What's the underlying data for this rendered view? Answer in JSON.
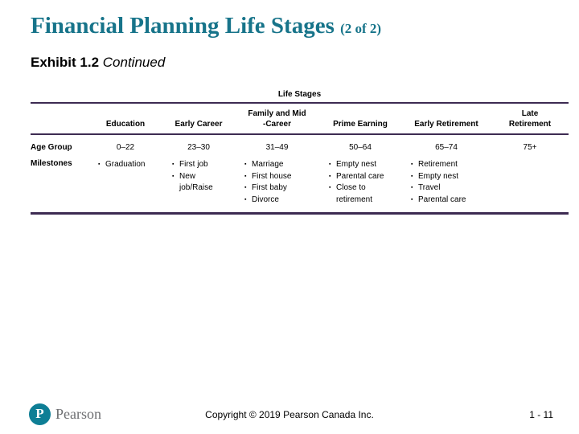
{
  "slide": {
    "title": "Financial Planning Life Stages",
    "title_suffix": "(2 of 2)",
    "subtitle_bold": "Exhibit 1.2",
    "subtitle_italic": "Continued"
  },
  "table": {
    "caption": "Life Stages",
    "columns": [
      "Education",
      "Early Career",
      "Family and Mid\n-Career",
      "Prime Earning",
      "Early Retirement",
      "Late\nRetirement"
    ],
    "age_row": {
      "label": "Age Group",
      "values": [
        "0–22",
        "23–30",
        "31–49",
        "50–64",
        "65–74",
        "75+"
      ]
    },
    "milestones_row": {
      "label": "Milestones",
      "bullet_icon": "▪",
      "items": [
        [
          "Graduation"
        ],
        [
          "First job",
          "New\njob/Raise"
        ],
        [
          "Marriage",
          "First house",
          "First baby",
          "Divorce"
        ],
        [
          "Empty nest",
          "Parental care",
          "Close to\nretirement"
        ],
        [
          "Retirement",
          "Empty nest",
          "Travel",
          "Parental care"
        ],
        []
      ]
    }
  },
  "footer": {
    "logo_text": "P",
    "logo_word": "Pearson",
    "copyright": "Copyright © 2019 Pearson Canada Inc.",
    "page": "1 - 11"
  },
  "colors": {
    "title_teal": "#17748a",
    "rule_purple": "#3d2b52",
    "logo_teal": "#0e7e95",
    "logo_gray": "#6d6e71"
  }
}
